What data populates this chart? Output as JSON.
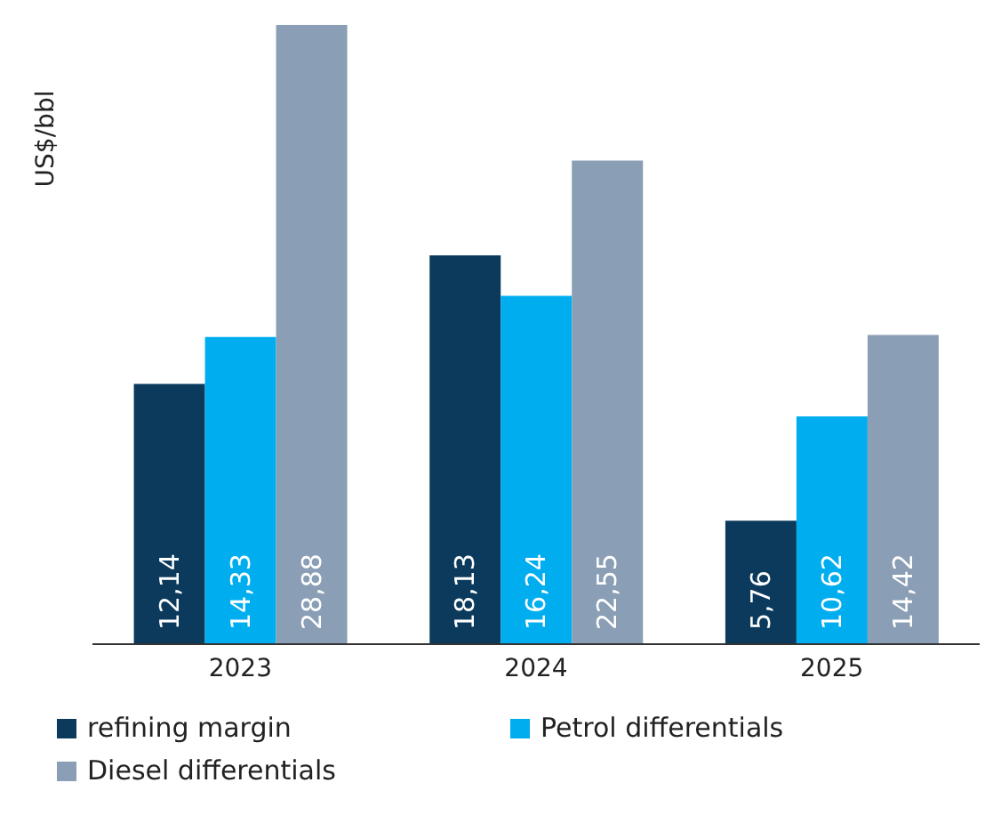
{
  "chart_data": {
    "type": "bar",
    "ylabel": "US$/bbl",
    "categories": [
      "2023",
      "2024",
      "2025"
    ],
    "series": [
      {
        "name": "refining margin",
        "color": "#0b3a5c",
        "values": [
          12.14,
          18.13,
          5.76
        ],
        "value_labels": [
          "12,14",
          "18,13",
          "5,76"
        ]
      },
      {
        "name": "Petrol differentials",
        "color": "#00aeef",
        "values": [
          14.33,
          16.24,
          10.62
        ],
        "value_labels": [
          "14,33",
          "16,24",
          "10,62"
        ]
      },
      {
        "name": "Diesel differentials",
        "color": "#8a9eb5",
        "values": [
          28.88,
          22.55,
          14.42
        ],
        "value_labels": [
          "28,88",
          "22,55",
          "14,42"
        ]
      }
    ],
    "legend": "bottom",
    "grid": false
  }
}
